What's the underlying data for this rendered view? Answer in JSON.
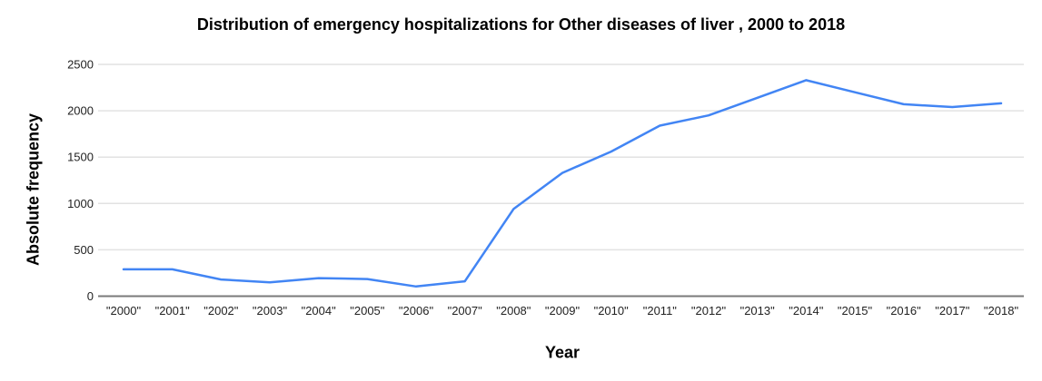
{
  "chart_data": {
    "type": "line",
    "title": "Distribution of emergency hospitalizations for Other diseases of liver , 2000 to 2018",
    "xlabel": "Year",
    "ylabel": "Absolute frequency",
    "categories": [
      "\"2000\"",
      "\"2001\"",
      "\"2002\"",
      "\"2003\"",
      "\"2004\"",
      "\"2005\"",
      "\"2006\"",
      "\"2007\"",
      "\"2008\"",
      "\"2009\"",
      "\"2010\"",
      "\"2011\"",
      "\"2012\"",
      "\"2013\"",
      "\"2014\"",
      "\"2015\"",
      "\"2016\"",
      "\"2017\"",
      "\"2018\""
    ],
    "values": [
      290,
      290,
      180,
      150,
      195,
      185,
      105,
      160,
      940,
      1330,
      1560,
      1840,
      1950,
      2140,
      2330,
      2200,
      2070,
      2040,
      2080
    ],
    "ylim": [
      0,
      2500
    ],
    "yticks": [
      0,
      500,
      1000,
      1500,
      2000,
      2500
    ],
    "grid": "horizontal-only",
    "legend_position": "none",
    "series_color": "#4285f4",
    "gridline_color": "#e2e2e2",
    "axis_line_color": "#7a7a7a",
    "tick_label_color": "#222222",
    "title_color": "#000000"
  }
}
